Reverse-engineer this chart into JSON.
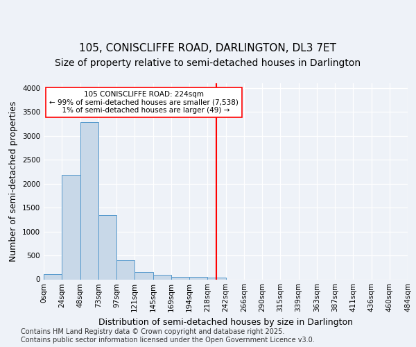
{
  "title": "105, CONISCLIFFE ROAD, DARLINGTON, DL3 7ET",
  "subtitle": "Size of property relative to semi-detached houses in Darlington",
  "xlabel": "Distribution of semi-detached houses by size in Darlington",
  "ylabel": "Number of semi-detached properties",
  "bin_labels": [
    "0sqm",
    "24sqm",
    "48sqm",
    "73sqm",
    "97sqm",
    "121sqm",
    "145sqm",
    "169sqm",
    "194sqm",
    "218sqm",
    "242sqm",
    "266sqm",
    "290sqm",
    "315sqm",
    "339sqm",
    "363sqm",
    "387sqm",
    "411sqm",
    "436sqm",
    "460sqm",
    "484sqm"
  ],
  "bar_heights": [
    110,
    2180,
    3280,
    1340,
    400,
    150,
    90,
    50,
    50,
    30,
    0,
    0,
    0,
    0,
    0,
    0,
    0,
    0,
    0,
    0
  ],
  "bar_color": "#c8d8e8",
  "bar_edge_color": "#5599cc",
  "vline_color": "red",
  "vline_x": 9.5,
  "annotation_text": "105 CONISCLIFFE ROAD: 224sqm\n← 99% of semi-detached houses are smaller (7,538)\n  1% of semi-detached houses are larger (49) →",
  "ylim": [
    0,
    4100
  ],
  "yticks": [
    0,
    500,
    1000,
    1500,
    2000,
    2500,
    3000,
    3500,
    4000
  ],
  "footer_text": "Contains HM Land Registry data © Crown copyright and database right 2025.\nContains public sector information licensed under the Open Government Licence v3.0.",
  "bg_color": "#eef2f8",
  "grid_color": "white",
  "title_fontsize": 11,
  "subtitle_fontsize": 10,
  "axis_label_fontsize": 9,
  "tick_fontsize": 7.5,
  "footer_fontsize": 7
}
